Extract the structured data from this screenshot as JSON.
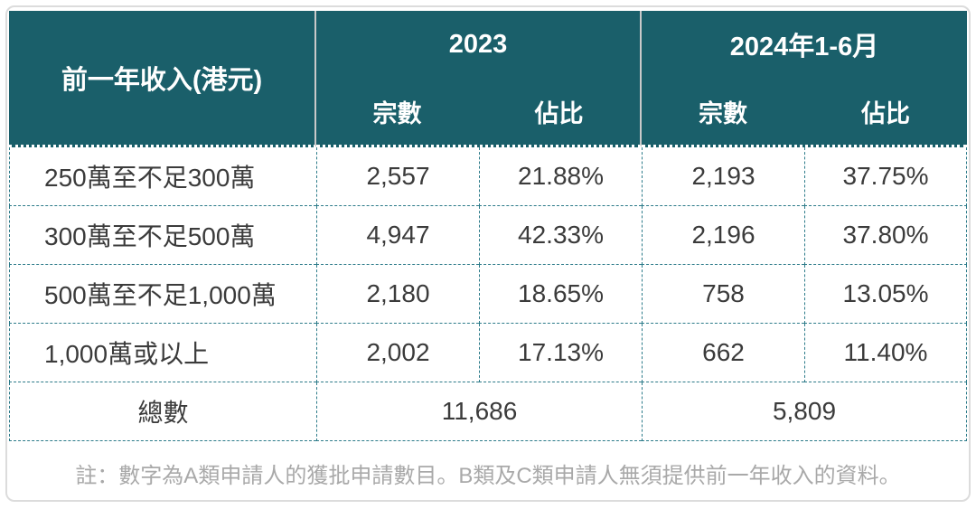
{
  "table": {
    "income_header": "前一年收入(港元)",
    "groups": [
      {
        "label": "2023",
        "sub_count": "宗數",
        "sub_share": "佔比"
      },
      {
        "label": "2024年1-6月",
        "sub_count": "宗數",
        "sub_share": "佔比"
      }
    ],
    "rows": [
      {
        "label": "250萬至不足300萬",
        "count_2023": "2,557",
        "share_2023": "21.88%",
        "count_2024": "2,193",
        "share_2024": "37.75%"
      },
      {
        "label": "300萬至不足500萬",
        "count_2023": "4,947",
        "share_2023": "42.33%",
        "count_2024": "2,196",
        "share_2024": "37.80%"
      },
      {
        "label": "500萬至不足1,000萬",
        "count_2023": "2,180",
        "share_2023": "18.65%",
        "count_2024": "758",
        "share_2024": "13.05%"
      },
      {
        "label": "1,000萬或以上",
        "count_2023": "2,002",
        "share_2023": "17.13%",
        "count_2024": "662",
        "share_2024": "11.40%"
      }
    ],
    "total": {
      "label": "總數",
      "total_2023": "11,686",
      "total_2024": "5,809"
    },
    "note": "註：數字為A類申請人的獲批申請數目。B類及C類申請人無須提供前一年收入的資料。"
  },
  "colors": {
    "header_background": "#1a5f6a",
    "header_text": "#ffffff",
    "dashed_border": "#2b7a89",
    "header_separator": "#c9c9c9",
    "outer_border": "#dcdcdc",
    "body_text": "#3b3b3b",
    "note_text": "#a9a9a9"
  }
}
